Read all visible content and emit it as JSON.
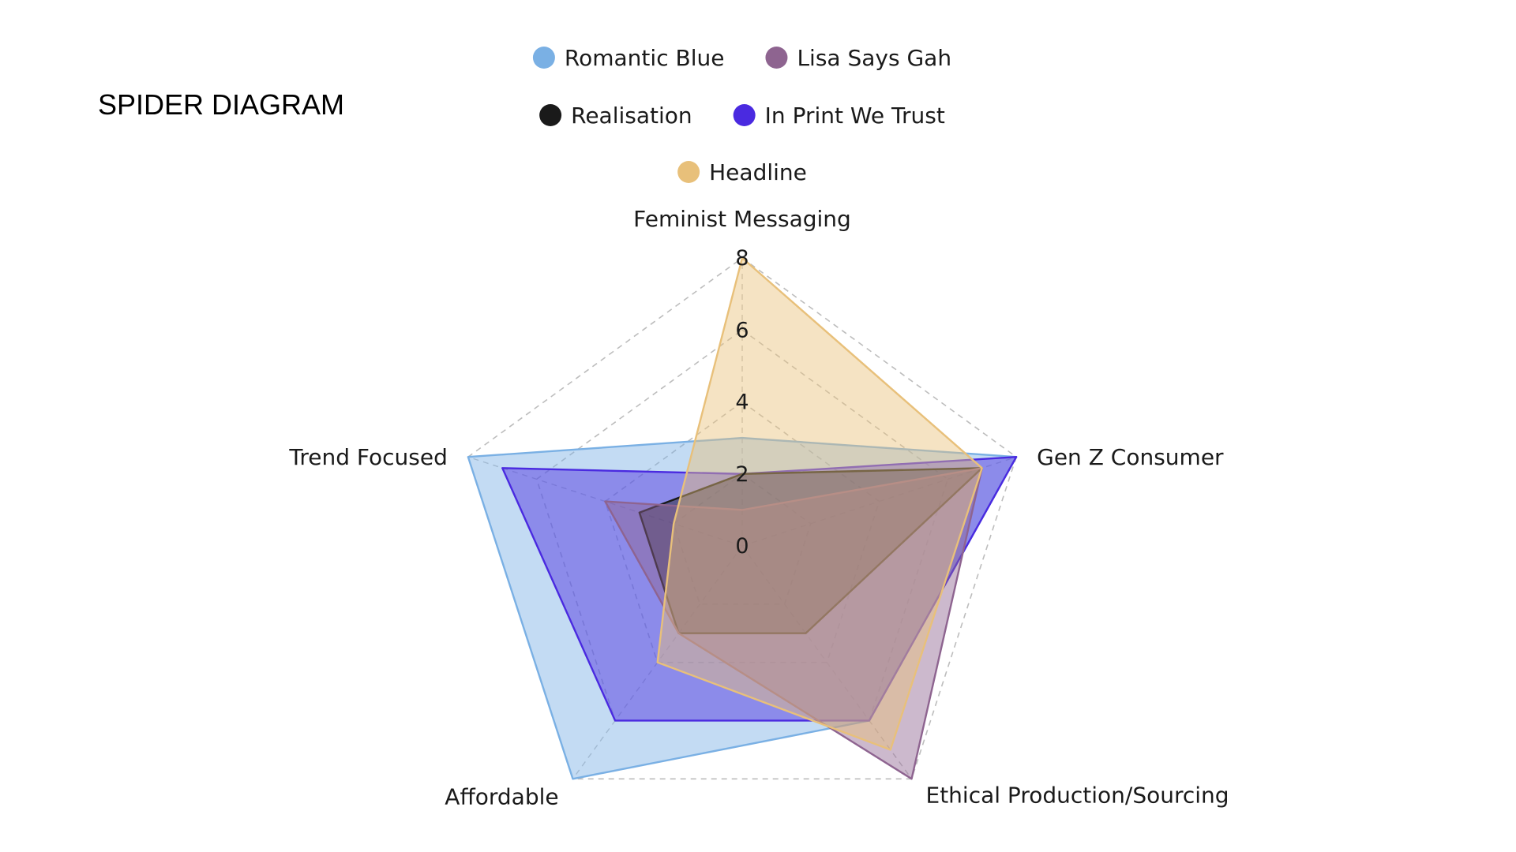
{
  "title": "SPIDER DIAGRAM",
  "chart_data": {
    "type": "radar",
    "title": "",
    "axes": [
      "Feminist Messaging",
      "Gen Z Consumer",
      "Ethical Production/Sourcing",
      "Affordable",
      "Trend Focused"
    ],
    "range": [
      0,
      8
    ],
    "ticks": [
      0,
      2,
      4,
      6,
      8
    ],
    "grid": true,
    "legend_position": "top-center",
    "series": [
      {
        "name": "Romantic Blue",
        "color": "#7ab0e4",
        "values": [
          3,
          8,
          6,
          8,
          8
        ]
      },
      {
        "name": "In Print We Trust",
        "color": "#4a2ae0",
        "values": [
          2,
          8,
          6,
          6,
          7
        ]
      },
      {
        "name": "Realisation",
        "color": "#1a1a1a",
        "values": [
          2,
          7,
          3,
          3,
          3
        ]
      },
      {
        "name": "Lisa Says Gah",
        "color": "#8e6490",
        "values": [
          1,
          7,
          8,
          3,
          4
        ]
      },
      {
        "name": "Headline",
        "color": "#e8c07a",
        "values": [
          8,
          7,
          7,
          4,
          2
        ]
      }
    ],
    "legend_order": [
      "Romantic Blue",
      "Lisa Says Gah",
      "Realisation",
      "In Print We Trust",
      "Headline"
    ]
  }
}
